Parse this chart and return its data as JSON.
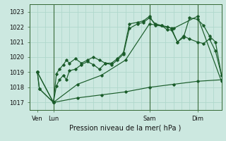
{
  "title": "Pression niveau de la mer( hPa )",
  "bg_color": "#cce8e0",
  "grid_color": "#b0d8cc",
  "line_color": "#1a5c2a",
  "ylim": [
    1016.5,
    1023.5
  ],
  "yticks": [
    1017,
    1018,
    1019,
    1020,
    1021,
    1022,
    1023
  ],
  "xlim": [
    0,
    192
  ],
  "xtick_positions": [
    8,
    24,
    120,
    168
  ],
  "xtick_labels": [
    "Ven",
    "Lun",
    "Sam",
    "Dim"
  ],
  "vlines_x": [
    24,
    120,
    168
  ],
  "s1_x": [
    8,
    10,
    24,
    27,
    30,
    34,
    37,
    40,
    46,
    52,
    58,
    64,
    70,
    76,
    82,
    88,
    94,
    100,
    108,
    114,
    120,
    126,
    132,
    138,
    142,
    148,
    154,
    160,
    168,
    174,
    180,
    186,
    192
  ],
  "s1_y": [
    1019.0,
    1017.9,
    1017.0,
    1018.9,
    1019.2,
    1019.5,
    1019.8,
    1019.6,
    1019.9,
    1019.6,
    1019.8,
    1020.0,
    1019.8,
    1019.6,
    1019.5,
    1019.8,
    1020.2,
    1021.9,
    1022.2,
    1022.3,
    1022.6,
    1022.2,
    1022.1,
    1022.0,
    1021.9,
    1021.0,
    1021.3,
    1022.6,
    1022.5,
    1022.1,
    1021.4,
    1021.0,
    1018.8
  ],
  "s2_x": [
    8,
    10,
    24,
    27,
    30,
    34,
    37,
    40,
    46,
    52,
    58,
    64,
    70,
    76,
    82,
    88,
    94,
    100,
    108,
    114,
    120,
    126,
    132,
    138,
    142,
    148,
    154,
    160,
    168,
    174,
    180,
    186,
    192
  ],
  "s2_y": [
    1019.0,
    1017.9,
    1017.0,
    1018.1,
    1018.5,
    1018.8,
    1018.5,
    1019.1,
    1019.2,
    1019.5,
    1019.7,
    1019.5,
    1019.2,
    1019.6,
    1019.6,
    1019.9,
    1020.3,
    1022.2,
    1022.3,
    1022.4,
    1022.7,
    1022.1,
    1022.1,
    1021.8,
    1021.8,
    1021.0,
    1021.4,
    1021.2,
    1021.0,
    1020.9,
    1021.2,
    1020.4,
    1018.8
  ],
  "s3_x": [
    8,
    24,
    48,
    72,
    96,
    120,
    144,
    168,
    192
  ],
  "s3_y": [
    1019.0,
    1017.0,
    1018.2,
    1018.8,
    1019.8,
    1022.2,
    1021.9,
    1022.7,
    1018.4
  ],
  "s4_x": [
    8,
    24,
    48,
    72,
    96,
    120,
    144,
    168,
    192
  ],
  "s4_y": [
    1019.0,
    1017.0,
    1017.3,
    1017.5,
    1017.7,
    1018.0,
    1018.2,
    1018.4,
    1018.5
  ]
}
